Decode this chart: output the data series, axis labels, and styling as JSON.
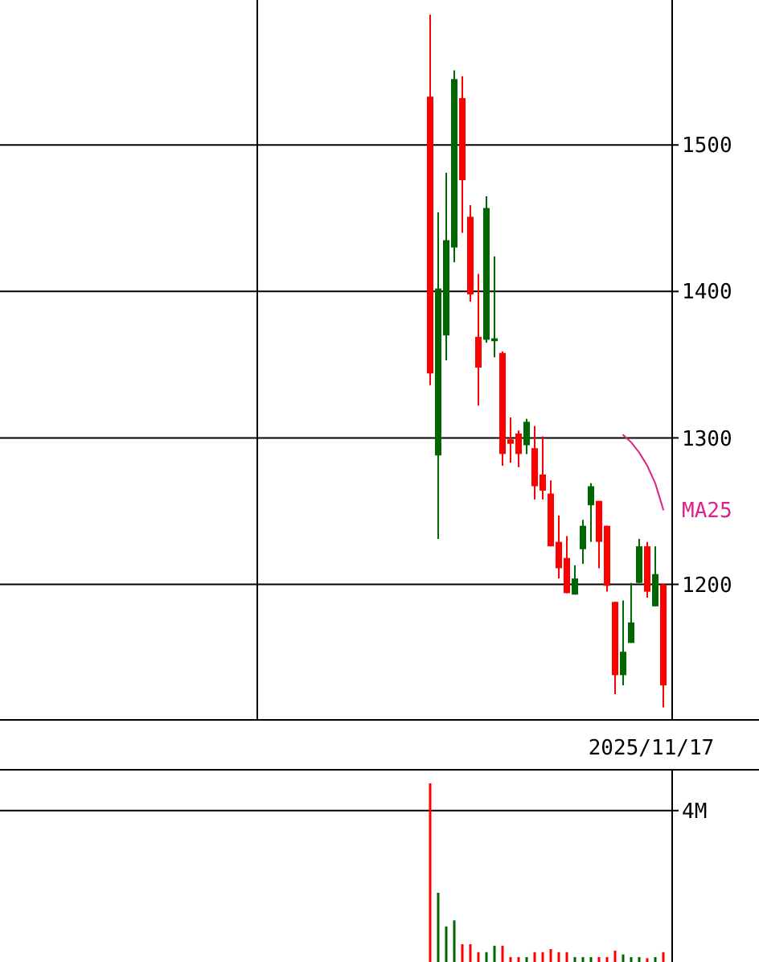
{
  "chart_data": [
    {
      "type": "candlestick",
      "categories": [
        null,
        null,
        null,
        null,
        null,
        null,
        null,
        null,
        null,
        null,
        null,
        null,
        null,
        null,
        null,
        null,
        null,
        null,
        null,
        null,
        null,
        null,
        null,
        null,
        null,
        null,
        null,
        null,
        null,
        null,
        null,
        null,
        null,
        null,
        null,
        null,
        null,
        null,
        null,
        null,
        null,
        null,
        null,
        null,
        null,
        null,
        null,
        null,
        null,
        null,
        null,
        null,
        null,
        null,
        null,
        null,
        null,
        null,
        null,
        null,
        null,
        null,
        null,
        null,
        null,
        null,
        null,
        null,
        null,
        null,
        null,
        null,
        null,
        null,
        null,
        null,
        null,
        null,
        null,
        null,
        null,
        null,
        null,
        null
      ],
      "ohlc": [
        null,
        null,
        null,
        null,
        null,
        null,
        null,
        null,
        null,
        null,
        null,
        null,
        null,
        null,
        null,
        null,
        null,
        null,
        null,
        null,
        null,
        null,
        null,
        null,
        null,
        null,
        null,
        null,
        null,
        null,
        null,
        null,
        null,
        null,
        null,
        null,
        null,
        null,
        null,
        null,
        null,
        null,
        null,
        null,
        null,
        null,
        null,
        null,
        null,
        null,
        null,
        null,
        null,
        [
          1533,
          1589,
          1336,
          1344
        ],
        [
          1288,
          1454,
          1231,
          1402
        ],
        [
          1370,
          1481,
          1353,
          1435
        ],
        [
          1430,
          1551,
          1420,
          1545
        ],
        [
          1532,
          1547,
          1440,
          1476
        ],
        [
          1451,
          1459,
          1393,
          1398
        ],
        [
          1369,
          1412,
          1322,
          1348
        ],
        [
          1367,
          1465,
          1365,
          1457
        ],
        [
          1366,
          1424,
          1355,
          1368
        ],
        [
          1358,
          1359,
          1281,
          1289
        ],
        [
          1299,
          1314,
          1283,
          1296
        ],
        [
          1303,
          1305,
          1280,
          1289
        ],
        [
          1295,
          1313,
          1289,
          1311
        ],
        [
          1293,
          1308,
          1258,
          1267
        ],
        [
          1275,
          1301,
          1258,
          1264
        ],
        [
          1262,
          1271,
          1226,
          1226
        ],
        [
          1229,
          1247,
          1204,
          1211
        ],
        [
          1218,
          1233,
          1194,
          1194
        ],
        [
          1193,
          1213,
          1193,
          1204
        ],
        [
          1224,
          1244,
          1214,
          1240
        ],
        [
          1254,
          1269,
          1229,
          1267
        ],
        [
          1257,
          1257,
          1211,
          1229
        ],
        [
          1240,
          1240,
          1195,
          1199
        ],
        [
          1188,
          1188,
          1125,
          1138
        ],
        [
          1138,
          1189,
          1131,
          1154
        ],
        [
          1160,
          1201,
          1160,
          1174
        ],
        [
          1201,
          1231,
          1201,
          1226
        ],
        [
          1226,
          1229,
          1191,
          1195
        ],
        [
          1185,
          1226,
          1185,
          1207
        ],
        [
          1200,
          1200,
          1116,
          1131
        ],
        null
      ],
      "colors": [
        null,
        null,
        null,
        null,
        null,
        null,
        null,
        null,
        null,
        null,
        null,
        null,
        null,
        null,
        null,
        null,
        null,
        null,
        null,
        null,
        null,
        null,
        null,
        null,
        null,
        null,
        null,
        null,
        null,
        null,
        null,
        null,
        null,
        null,
        null,
        null,
        null,
        null,
        null,
        null,
        null,
        null,
        null,
        null,
        null,
        null,
        null,
        null,
        null,
        null,
        null,
        null,
        null,
        "#ff0000",
        "#006600",
        "#006600",
        "#006600",
        "#ff0000",
        "#ff0000",
        "#ff0000",
        "#006600",
        "#006600",
        "#ff0000",
        "#ff0000",
        "#ff0000",
        "#006600",
        "#ff0000",
        "#ff0000",
        "#ff0000",
        "#ff0000",
        "#ff0000",
        "#006600",
        "#006600",
        "#006600",
        "#ff0000",
        "#ff0000",
        "#ff0000",
        "#006600",
        "#006600",
        "#006600",
        "#ff0000",
        "#006600",
        "#ff0000",
        null
      ],
      "series": [
        {
          "type": "line",
          "name": "MA25",
          "color": "#dd2288",
          "values": [
            null,
            null,
            null,
            null,
            null,
            null,
            null,
            null,
            null,
            null,
            null,
            null,
            null,
            null,
            null,
            null,
            null,
            null,
            null,
            null,
            null,
            null,
            null,
            null,
            null,
            null,
            null,
            null,
            null,
            null,
            null,
            null,
            null,
            null,
            null,
            null,
            null,
            null,
            null,
            null,
            null,
            null,
            null,
            null,
            null,
            null,
            null,
            null,
            null,
            null,
            null,
            null,
            null,
            null,
            null,
            null,
            null,
            null,
            null,
            null,
            null,
            null,
            null,
            null,
            null,
            null,
            null,
            null,
            null,
            null,
            null,
            null,
            null,
            null,
            null,
            null,
            null,
            1302,
            1297,
            1290,
            1281,
            1269,
            1251,
            null
          ]
        }
      ],
      "ylim": [
        1108,
        1599
      ],
      "yticks": [
        1200,
        1300,
        1400,
        1500
      ],
      "grid": "y",
      "annotations": [
        "2025/11/17"
      ]
    },
    {
      "type": "bar",
      "categories": [
        null,
        null,
        null,
        null,
        null,
        null,
        null,
        null,
        null,
        null,
        null,
        null,
        null,
        null,
        null,
        null,
        null,
        null,
        null,
        null,
        null,
        null,
        null,
        null,
        null,
        null,
        null,
        null,
        null,
        null,
        null,
        null,
        null,
        null,
        null,
        null,
        null,
        null,
        null,
        null,
        null,
        null,
        null,
        null,
        null,
        null,
        null,
        null,
        null,
        null,
        null,
        null,
        null,
        null,
        null,
        null,
        null,
        null,
        null,
        null,
        null,
        null,
        null,
        null,
        null,
        null,
        null,
        null,
        null,
        null,
        null,
        null,
        null,
        null,
        null,
        null,
        null,
        null,
        null,
        null,
        null,
        null,
        null,
        null
      ],
      "values": [
        null,
        null,
        null,
        null,
        null,
        null,
        null,
        null,
        null,
        null,
        null,
        null,
        null,
        null,
        null,
        null,
        null,
        null,
        null,
        null,
        null,
        null,
        null,
        null,
        null,
        null,
        null,
        null,
        null,
        null,
        null,
        null,
        null,
        null,
        null,
        null,
        null,
        null,
        null,
        null,
        null,
        null,
        null,
        null,
        null,
        null,
        null,
        null,
        null,
        null,
        null,
        null,
        null,
        4.72,
        1.83,
        0.94,
        1.1,
        0.47,
        0.47,
        0.26,
        0.26,
        0.43,
        0.43,
        0.13,
        0.13,
        0.13,
        0.26,
        0.26,
        0.34,
        0.26,
        0.26,
        0.13,
        0.13,
        0.13,
        0.13,
        0.13,
        0.3,
        0.2,
        0.13,
        0.13,
        0.1,
        0.13,
        0.26,
        null
      ],
      "colors": [
        null,
        null,
        null,
        null,
        null,
        null,
        null,
        null,
        null,
        null,
        null,
        null,
        null,
        null,
        null,
        null,
        null,
        null,
        null,
        null,
        null,
        null,
        null,
        null,
        null,
        null,
        null,
        null,
        null,
        null,
        null,
        null,
        null,
        null,
        null,
        null,
        null,
        null,
        null,
        null,
        null,
        null,
        null,
        null,
        null,
        null,
        null,
        null,
        null,
        null,
        null,
        null,
        null,
        "#ff0000",
        "#006600",
        "#006600",
        "#006600",
        "#ff0000",
        "#ff0000",
        "#ff0000",
        "#006600",
        "#006600",
        "#ff0000",
        "#ff0000",
        "#ff0000",
        "#006600",
        "#ff0000",
        "#ff0000",
        "#ff0000",
        "#ff0000",
        "#ff0000",
        "#006600",
        "#006600",
        "#006600",
        "#ff0000",
        "#ff0000",
        "#ff0000",
        "#006600",
        "#006600",
        "#006600",
        "#ff0000",
        "#006600",
        "#ff0000",
        null
      ],
      "ylim": [
        0,
        5.1
      ],
      "yticks": [
        {
          "value": 4,
          "label": "4M"
        }
      ],
      "grid": "y"
    }
  ]
}
